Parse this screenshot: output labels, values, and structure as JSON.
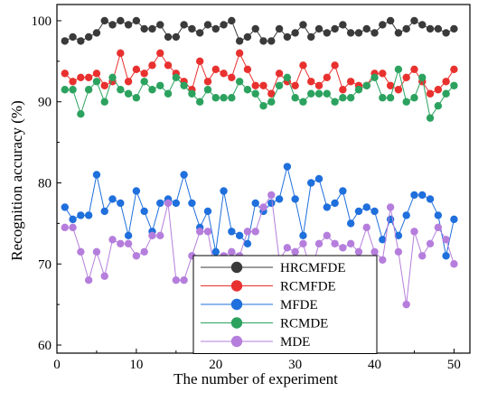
{
  "chart_data": {
    "type": "line",
    "title": "",
    "xlabel": "The number of experiment",
    "ylabel": "Recognition accuracy (%)",
    "xlim": [
      0,
      52
    ],
    "ylim": [
      59,
      102
    ],
    "xticks": [
      0,
      10,
      20,
      30,
      40,
      50
    ],
    "yticks": [
      60,
      70,
      80,
      90,
      100
    ],
    "grid": false,
    "legend_position": "lower-middle",
    "x": [
      1,
      2,
      3,
      4,
      5,
      6,
      7,
      8,
      9,
      10,
      11,
      12,
      13,
      14,
      15,
      16,
      17,
      18,
      19,
      20,
      21,
      22,
      23,
      24,
      25,
      26,
      27,
      28,
      29,
      30,
      31,
      32,
      33,
      34,
      35,
      36,
      37,
      38,
      39,
      40,
      41,
      42,
      43,
      44,
      45,
      46,
      47,
      48,
      49,
      50
    ],
    "series": [
      {
        "name": "HRCMFDE",
        "color": "#3a3a3a",
        "values": [
          97.5,
          98.0,
          97.5,
          98.0,
          98.5,
          100.0,
          99.5,
          100.0,
          99.5,
          100.0,
          99.0,
          99.0,
          99.5,
          98.0,
          98.0,
          99.5,
          99.0,
          98.5,
          99.5,
          99.0,
          99.5,
          100.0,
          97.5,
          98.0,
          99.0,
          97.5,
          97.5,
          99.0,
          98.0,
          98.5,
          99.5,
          98.0,
          99.0,
          98.5,
          99.0,
          99.5,
          98.5,
          98.5,
          99.0,
          98.5,
          99.5,
          100.0,
          98.5,
          99.0,
          100.0,
          99.5,
          99.0,
          99.0,
          98.5,
          99.0
        ]
      },
      {
        "name": "RCMFDE",
        "color": "#e8312f",
        "values": [
          93.5,
          92.5,
          93.0,
          93.0,
          93.5,
          92.0,
          92.5,
          96.0,
          92.5,
          94.0,
          93.5,
          94.5,
          96.0,
          94.5,
          93.5,
          92.5,
          91.5,
          95.0,
          92.5,
          94.0,
          93.5,
          93.0,
          96.0,
          94.0,
          92.0,
          92.0,
          91.0,
          93.5,
          92.5,
          92.0,
          94.5,
          92.5,
          92.0,
          93.0,
          94.5,
          91.5,
          92.5,
          92.0,
          92.0,
          93.5,
          93.5,
          92.0,
          91.5,
          93.0,
          94.0,
          92.5,
          91.0,
          91.5,
          92.5,
          94.0
        ]
      },
      {
        "name": "MFDE",
        "color": "#1f6fdc",
        "values": [
          77.0,
          75.5,
          76.0,
          76.0,
          81.0,
          76.5,
          78.0,
          77.5,
          73.5,
          79.0,
          76.5,
          74.0,
          77.5,
          78.0,
          77.5,
          81.0,
          77.5,
          74.5,
          76.5,
          71.5,
          79.0,
          74.0,
          73.5,
          72.5,
          77.5,
          76.5,
          77.5,
          78.0,
          82.0,
          78.0,
          73.5,
          80.0,
          80.5,
          77.0,
          77.5,
          79.0,
          75.0,
          76.5,
          77.0,
          76.5,
          73.0,
          75.5,
          73.5,
          76.0,
          78.5,
          78.5,
          78.0,
          76.0,
          71.0,
          75.5
        ]
      },
      {
        "name": "RCMDE",
        "color": "#2ca25f",
        "values": [
          91.5,
          91.5,
          88.5,
          91.5,
          92.5,
          90.0,
          93.0,
          91.5,
          91.0,
          90.5,
          92.5,
          91.5,
          92.0,
          91.0,
          93.0,
          92.0,
          91.0,
          90.0,
          91.5,
          90.5,
          90.5,
          90.5,
          92.5,
          91.5,
          91.0,
          89.5,
          90.0,
          92.0,
          93.0,
          90.5,
          90.0,
          91.0,
          91.0,
          91.0,
          90.0,
          90.5,
          90.5,
          91.5,
          92.0,
          93.0,
          90.5,
          90.5,
          94.0,
          90.0,
          90.5,
          93.0,
          88.0,
          89.5,
          91.0,
          92.0
        ]
      },
      {
        "name": "MDE",
        "color": "#b57edc",
        "values": [
          74.5,
          74.5,
          71.5,
          68.0,
          71.5,
          68.5,
          73.0,
          72.5,
          72.5,
          71.0,
          71.5,
          73.5,
          73.5,
          77.5,
          68.0,
          68.0,
          71.0,
          74.0,
          74.0,
          68.5,
          71.0,
          71.5,
          71.0,
          74.0,
          74.0,
          77.0,
          78.5,
          70.5,
          72.0,
          71.5,
          72.5,
          69.0,
          72.5,
          73.5,
          72.5,
          72.0,
          72.5,
          71.5,
          74.5,
          71.5,
          70.5,
          77.0,
          71.5,
          65.0,
          74.0,
          71.0,
          72.5,
          74.5,
          73.0,
          70.0
        ]
      }
    ]
  }
}
